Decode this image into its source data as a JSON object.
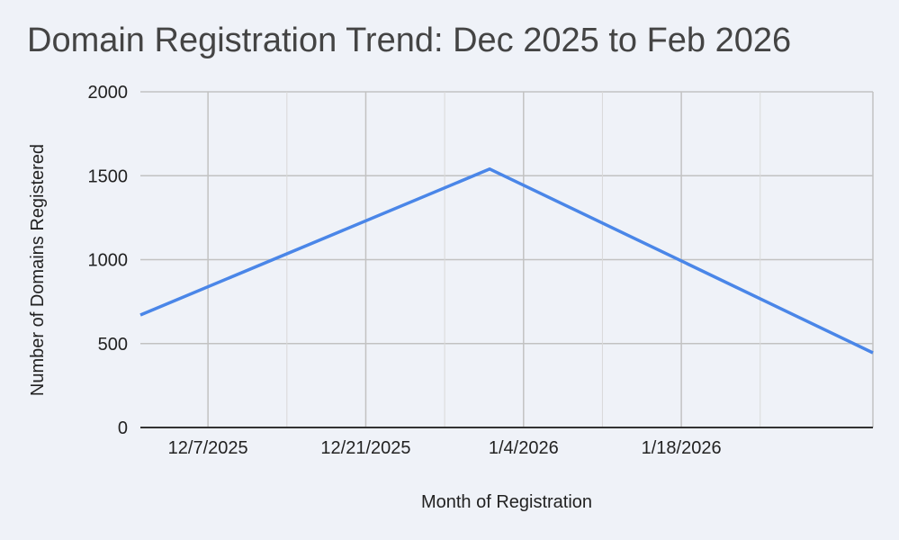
{
  "chart_data": {
    "type": "line",
    "title": "Domain Registration Trend: Dec 2025 to Feb 2026",
    "xlabel": "Month of Registration",
    "ylabel": "Number of Domains Registered",
    "x_range": [
      "2025-12-01",
      "2026-02-04"
    ],
    "ylim": [
      0,
      2000
    ],
    "y_ticks": [
      0,
      500,
      1000,
      1500,
      2000
    ],
    "x_ticks": [
      {
        "date": "2025-12-07",
        "label": "12/7/2025"
      },
      {
        "date": "2025-12-21",
        "label": "12/21/2025"
      },
      {
        "date": "2026-01-04",
        "label": "1/4/2026"
      },
      {
        "date": "2026-01-18",
        "label": "1/18/2026"
      }
    ],
    "grid": true,
    "legend": "none",
    "series": [
      {
        "color": "#4a86e8",
        "points": [
          {
            "x": "2025-12-01",
            "y": 670
          },
          {
            "x": "2026-01-01",
            "y": 1540
          },
          {
            "x": "2026-02-04",
            "y": 445
          }
        ]
      }
    ]
  }
}
